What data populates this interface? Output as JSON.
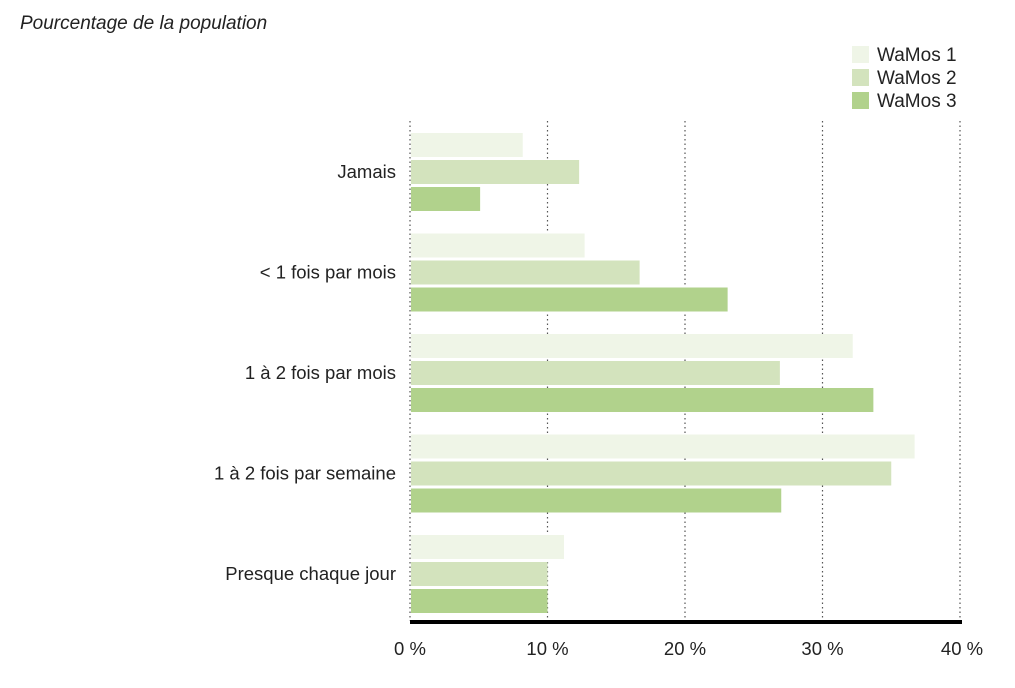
{
  "chart_data": {
    "type": "bar",
    "orientation": "horizontal",
    "title": "",
    "subtitle": "Pourcentage de la population",
    "xlabel": "",
    "ylabel": "",
    "xlim": [
      0,
      40
    ],
    "x_ticks": [
      0,
      10,
      20,
      30,
      40
    ],
    "x_tick_labels": [
      "0 %",
      "10 %",
      "20 %",
      "30 %",
      "40 %"
    ],
    "grid": "vertical dotted",
    "legend_position": "top-right",
    "categories": [
      "Jamais",
      "< 1 fois par mois",
      "1 à 2 fois par mois",
      "1 à 2 fois par semaine",
      "Presque chaque jour"
    ],
    "series": [
      {
        "name": "WaMos 1",
        "color": "#eff5e7",
        "values": [
          8.2,
          12.7,
          32.2,
          36.7,
          11.2
        ]
      },
      {
        "name": "WaMos 2",
        "color": "#d3e3bd",
        "values": [
          12.3,
          16.7,
          26.9,
          35.0,
          10.0
        ]
      },
      {
        "name": "WaMos 3",
        "color": "#b1d28c",
        "values": [
          5.1,
          23.1,
          33.7,
          27.0,
          10.0
        ]
      }
    ]
  }
}
